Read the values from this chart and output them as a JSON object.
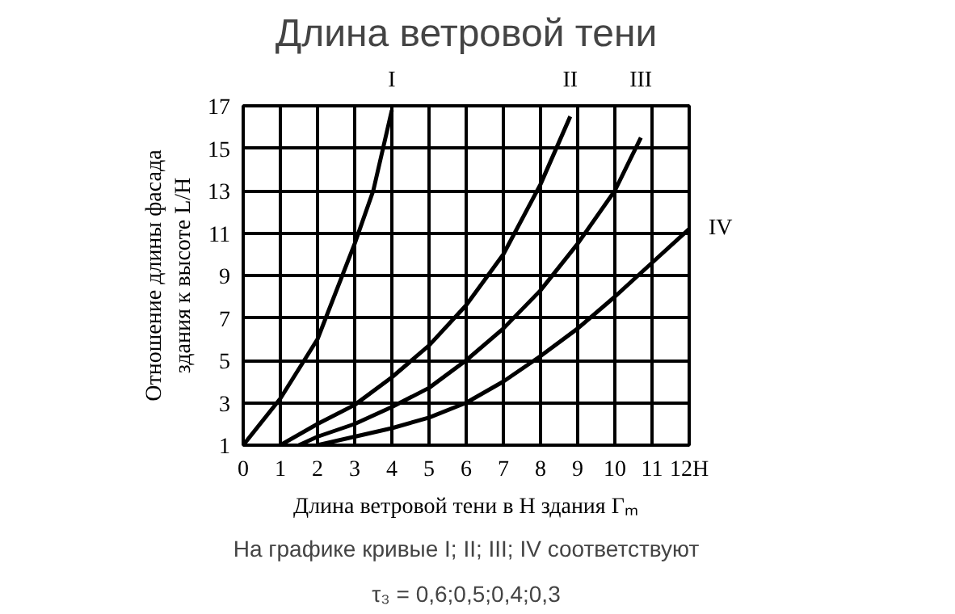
{
  "chart_data": {
    "type": "line",
    "title": "Длина ветровой тени",
    "xlabel": "Длина ветровой тени в H здания Гₘ",
    "ylabel": "Отношение длины фасада\nздания к высоте L/H",
    "xlim": [
      0,
      12
    ],
    "ylim": [
      1,
      17
    ],
    "xticks": [
      0,
      1,
      2,
      3,
      4,
      5,
      6,
      7,
      8,
      9,
      10,
      11,
      {
        "value": 12,
        "label": "12H"
      }
    ],
    "yticks": [
      1,
      3,
      5,
      7,
      9,
      11,
      13,
      15,
      17
    ],
    "grid": true,
    "marker": "none",
    "line_style": "solid",
    "series": [
      {
        "name": "I",
        "color": "#000000",
        "x": [
          0,
          1,
          2,
          3,
          3.5,
          4
        ],
        "values": [
          1,
          3.2,
          6,
          10.5,
          13,
          16.8
        ]
      },
      {
        "name": "II",
        "color": "#000000",
        "x": [
          1,
          2,
          3,
          4,
          5,
          6,
          7,
          8,
          8.8
        ],
        "values": [
          1,
          2,
          2.9,
          4.2,
          5.7,
          7.6,
          10,
          13.3,
          16.5
        ]
      },
      {
        "name": "III",
        "color": "#000000",
        "x": [
          1.5,
          2,
          3,
          4,
          5,
          6,
          7,
          8,
          9,
          10,
          10.7
        ],
        "values": [
          1,
          1.4,
          2,
          2.8,
          3.7,
          5,
          6.5,
          8.3,
          10.5,
          13,
          15.5
        ]
      },
      {
        "name": "IV",
        "color": "#000000",
        "x": [
          2,
          3,
          4,
          5,
          6,
          7,
          8,
          9,
          10,
          11,
          12
        ],
        "values": [
          1,
          1.4,
          1.8,
          2.3,
          3,
          4,
          5.2,
          6.5,
          8,
          9.6,
          11.2
        ]
      }
    ],
    "annotations": [
      "На графике кривые I; II; III; IV соответствуют",
      "τ₃ = 0,6;0,5;0,4;0,3"
    ]
  }
}
